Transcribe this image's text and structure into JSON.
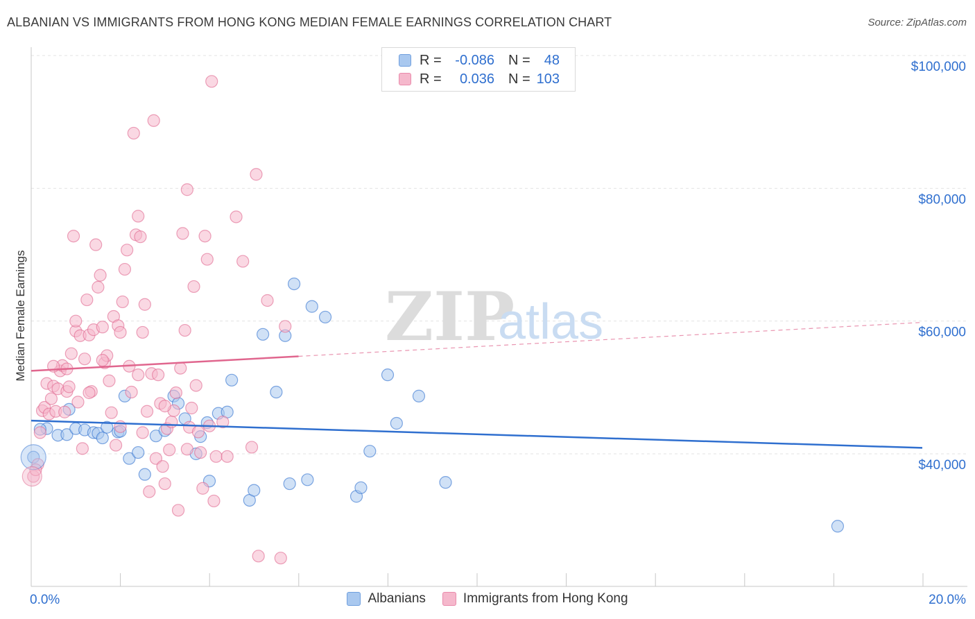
{
  "title": "ALBANIAN VS IMMIGRANTS FROM HONG KONG MEDIAN FEMALE EARNINGS CORRELATION CHART",
  "source": "Source: ZipAtlas.com",
  "watermark": {
    "zip": "ZIP",
    "atlas": "atlas"
  },
  "colors": {
    "blue": "#2f6fcf",
    "blue_fill": "#a9c8ef",
    "pink": "#e0668e",
    "pink_fill": "#f5b8cc",
    "grid": "#e3e3e3"
  },
  "legend_top": {
    "rows": [
      {
        "r_key": "R =",
        "r_val": "-0.086",
        "n_key": "N =",
        "n_val": "48",
        "swatch": "#a9c8ef",
        "swatch_border": "#6f9fde"
      },
      {
        "r_key": "R =",
        "r_val": "0.036",
        "n_key": "N =",
        "n_val": "103",
        "swatch": "#f5b8cc",
        "swatch_border": "#e98aab"
      }
    ]
  },
  "legend_bottom": [
    {
      "label": "Albanians",
      "swatch": "#a9c8ef",
      "swatch_border": "#6f9fde"
    },
    {
      "label": "Immigrants from Hong Kong",
      "swatch": "#f5b8cc",
      "swatch_border": "#e98aab"
    }
  ],
  "chart_data": {
    "type": "scatter",
    "title": "ALBANIAN VS IMMIGRANTS FROM HONG KONG MEDIAN FEMALE EARNINGS CORRELATION CHART",
    "xlabel": "",
    "ylabel": "Median Female Earnings",
    "xlim": [
      0,
      20
    ],
    "ylim": [
      22000,
      103000
    ],
    "x_tick_labels": [
      {
        "value": 0,
        "label": "0.0%"
      },
      {
        "value": 20,
        "label": "20.0%"
      }
    ],
    "y_tick_labels": [
      {
        "value": 40000,
        "label": "$40,000"
      },
      {
        "value": 60000,
        "label": "$60,000"
      },
      {
        "value": 80000,
        "label": "$80,000"
      },
      {
        "value": 100000,
        "label": "$100,000"
      }
    ],
    "series": [
      {
        "name": "Albanians",
        "color": "#2f6fcf",
        "fill": "#a9c8ef",
        "trend": {
          "x0": 0,
          "y0": 45000,
          "x1": 20,
          "y1": 40900,
          "solid_to": 20
        },
        "points": [
          [
            0.05,
            39500
          ],
          [
            0.35,
            43800
          ],
          [
            0.6,
            42800
          ],
          [
            0.8,
            42900
          ],
          [
            0.85,
            46700
          ],
          [
            1.0,
            43800
          ],
          [
            1.2,
            43600
          ],
          [
            1.4,
            43200
          ],
          [
            1.5,
            43100
          ],
          [
            1.6,
            42400
          ],
          [
            1.7,
            44000
          ],
          [
            1.95,
            43300
          ],
          [
            2.1,
            48700
          ],
          [
            2.2,
            39300
          ],
          [
            2.4,
            40200
          ],
          [
            2.55,
            36900
          ],
          [
            2.8,
            42700
          ],
          [
            3.0,
            43500
          ],
          [
            3.2,
            48700
          ],
          [
            3.3,
            47600
          ],
          [
            3.45,
            45300
          ],
          [
            3.7,
            40000
          ],
          [
            3.8,
            42600
          ],
          [
            3.95,
            44700
          ],
          [
            4.0,
            35900
          ],
          [
            4.2,
            46100
          ],
          [
            4.4,
            46300
          ],
          [
            4.5,
            51100
          ],
          [
            4.9,
            33000
          ],
          [
            5.0,
            34500
          ],
          [
            5.2,
            58000
          ],
          [
            5.5,
            49300
          ],
          [
            5.7,
            57800
          ],
          [
            5.8,
            35500
          ],
          [
            5.9,
            65600
          ],
          [
            6.2,
            36100
          ],
          [
            6.3,
            62200
          ],
          [
            6.6,
            60600
          ],
          [
            7.3,
            33600
          ],
          [
            7.4,
            34900
          ],
          [
            7.6,
            40400
          ],
          [
            8.0,
            51900
          ],
          [
            8.2,
            44600
          ],
          [
            8.7,
            48700
          ],
          [
            9.3,
            35700
          ],
          [
            18.1,
            29100
          ],
          [
            0.2,
            43700
          ],
          [
            2.0,
            43400
          ]
        ]
      },
      {
        "name": "Immigrants from Hong Kong",
        "color": "#e0668e",
        "fill": "#f5b8cc",
        "trend": {
          "x0": 0,
          "y0": 52500,
          "x1": 20,
          "y1": 59800,
          "solid_to": 6.0
        },
        "points": [
          [
            0.05,
            36600
          ],
          [
            0.15,
            38400
          ],
          [
            0.2,
            43200
          ],
          [
            0.25,
            46500
          ],
          [
            0.3,
            47000
          ],
          [
            0.35,
            50600
          ],
          [
            0.4,
            46000
          ],
          [
            0.45,
            48300
          ],
          [
            0.5,
            50200
          ],
          [
            0.55,
            46400
          ],
          [
            0.6,
            49800
          ],
          [
            0.65,
            52500
          ],
          [
            0.7,
            53300
          ],
          [
            0.75,
            46300
          ],
          [
            0.8,
            49400
          ],
          [
            0.85,
            50100
          ],
          [
            0.9,
            55100
          ],
          [
            0.95,
            72800
          ],
          [
            1.0,
            58500
          ],
          [
            1.05,
            47800
          ],
          [
            1.1,
            57800
          ],
          [
            1.15,
            40800
          ],
          [
            1.2,
            54300
          ],
          [
            1.25,
            63200
          ],
          [
            1.3,
            57900
          ],
          [
            1.35,
            49400
          ],
          [
            1.4,
            58700
          ],
          [
            1.45,
            71500
          ],
          [
            1.5,
            65100
          ],
          [
            1.55,
            66900
          ],
          [
            1.6,
            59100
          ],
          [
            1.65,
            53700
          ],
          [
            1.7,
            54800
          ],
          [
            1.75,
            51000
          ],
          [
            1.8,
            46200
          ],
          [
            1.85,
            60700
          ],
          [
            1.9,
            41300
          ],
          [
            1.95,
            59300
          ],
          [
            2.0,
            58300
          ],
          [
            2.05,
            62900
          ],
          [
            2.1,
            67800
          ],
          [
            2.15,
            70700
          ],
          [
            2.2,
            53200
          ],
          [
            2.25,
            49300
          ],
          [
            2.3,
            88300
          ],
          [
            2.35,
            73000
          ],
          [
            2.4,
            75800
          ],
          [
            2.45,
            72700
          ],
          [
            2.5,
            58300
          ],
          [
            2.55,
            62500
          ],
          [
            2.6,
            46400
          ],
          [
            2.65,
            34300
          ],
          [
            2.7,
            52100
          ],
          [
            2.75,
            90200
          ],
          [
            2.8,
            39300
          ],
          [
            2.85,
            51900
          ],
          [
            2.9,
            47600
          ],
          [
            2.95,
            38100
          ],
          [
            3.0,
            35500
          ],
          [
            3.05,
            43800
          ],
          [
            3.1,
            40600
          ],
          [
            3.15,
            44800
          ],
          [
            3.2,
            46500
          ],
          [
            3.25,
            49200
          ],
          [
            3.3,
            31500
          ],
          [
            3.35,
            52900
          ],
          [
            3.4,
            73200
          ],
          [
            3.45,
            58600
          ],
          [
            3.5,
            79800
          ],
          [
            3.55,
            44000
          ],
          [
            3.6,
            46900
          ],
          [
            3.65,
            65200
          ],
          [
            3.7,
            50300
          ],
          [
            3.75,
            43300
          ],
          [
            3.8,
            40200
          ],
          [
            3.85,
            34800
          ],
          [
            3.9,
            72800
          ],
          [
            3.95,
            69300
          ],
          [
            4.0,
            44200
          ],
          [
            4.05,
            96100
          ],
          [
            4.1,
            32900
          ],
          [
            4.15,
            39600
          ],
          [
            4.3,
            44800
          ],
          [
            4.4,
            39600
          ],
          [
            4.6,
            75700
          ],
          [
            4.75,
            69000
          ],
          [
            4.95,
            41000
          ],
          [
            5.05,
            82100
          ],
          [
            5.1,
            24600
          ],
          [
            5.3,
            63100
          ],
          [
            5.6,
            24300
          ],
          [
            5.7,
            59200
          ],
          [
            0.1,
            37600
          ],
          [
            0.5,
            53200
          ],
          [
            1.0,
            60000
          ],
          [
            1.3,
            49200
          ],
          [
            2.0,
            44100
          ],
          [
            2.5,
            43200
          ],
          [
            3.0,
            47200
          ],
          [
            3.5,
            40700
          ],
          [
            0.8,
            52800
          ],
          [
            1.6,
            54100
          ],
          [
            2.4,
            51900
          ]
        ]
      }
    ]
  }
}
